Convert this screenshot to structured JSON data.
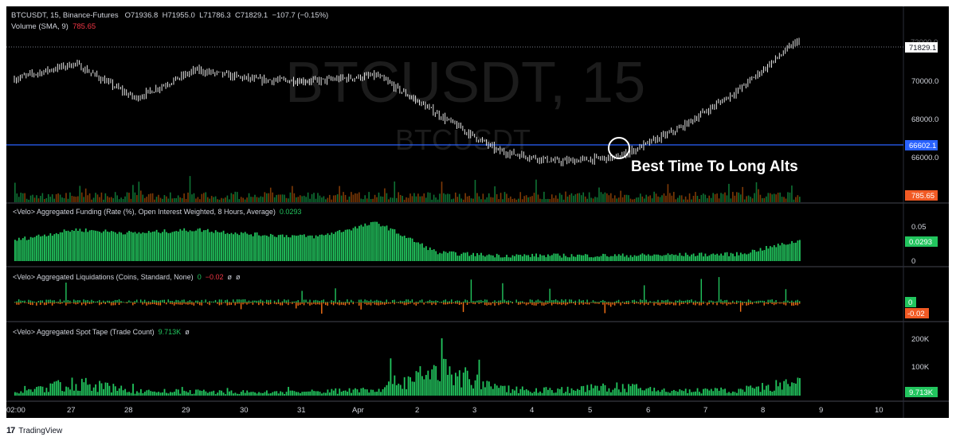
{
  "header": {
    "symbol_line": "BTCUSDT, 15, Binance-Futures",
    "open": "O71936.8",
    "high": "H71955.0",
    "low": "L71786.3",
    "close": "C71829.1",
    "change": "−107.7 (−0.15%)",
    "volume_label": "Volume (SMA, 9)",
    "volume_value": "785.65"
  },
  "watermark": {
    "main": "BTCUSDT, 15",
    "sub": "BTCUSDT"
  },
  "annotation": {
    "text": "Best Time To Long Alts"
  },
  "price_axis": {
    "ticks": [
      "70000.0",
      "68000.0",
      "66000.0"
    ],
    "current_price": "71829.1",
    "line_price": "66602.1",
    "volume_badge": "785.65",
    "top_cut_tick": "72000.0"
  },
  "panes": {
    "funding": {
      "title": "<Velo> Aggregated Funding (Rate (%), Open Interest Weighted, 8 Hours, Average)",
      "value": "0.0293",
      "ticks": [
        "0.05",
        "0"
      ],
      "badge": "0.0293"
    },
    "liquidations": {
      "title": "<Velo> Aggregated Liquidations (Coins, Standard, None)",
      "value_a": "0",
      "value_b": "−0.02",
      "value_c": "ø",
      "value_d": "ø",
      "badge_a": "0",
      "badge_b": "-0.02"
    },
    "spot_tape": {
      "title": "<Velo> Aggregated Spot Tape (Trade Count)",
      "value": "9.713K",
      "value_b": "ø",
      "ticks": [
        "200K",
        "100K"
      ],
      "badge": "9.713K"
    }
  },
  "time_axis": {
    "labels": [
      "02:00",
      "27",
      "28",
      "29",
      "30",
      "31",
      "Apr",
      "2",
      "3",
      "4",
      "5",
      "6",
      "7",
      "8",
      "9",
      "10"
    ]
  },
  "footer": {
    "logo": "17",
    "brand": "TradingView"
  },
  "colors": {
    "background": "#000000",
    "candle": "#ffffff",
    "horizontal_line": "#2962ff",
    "funding_bars": "#22c55e",
    "liq_long": "#22c55e",
    "liq_short": "#f97316",
    "volume_badge": "#f15a24",
    "green_badge": "#22c55e"
  },
  "chart_data": [
    {
      "type": "line",
      "title": "BTCUSDT, 15",
      "x": [
        "26 Mar 02:00",
        "27 Mar",
        "28 Mar",
        "29 Mar",
        "30 Mar",
        "31 Mar",
        "1 Apr",
        "2 Apr",
        "3 Apr",
        "4 Apr",
        "5 Apr",
        "6 Apr",
        "7 Apr",
        "8 Apr"
      ],
      "y": [
        70200,
        70900,
        69300,
        70600,
        70150,
        70100,
        70350,
        68600,
        66900,
        66400,
        66600,
        67900,
        69700,
        72000
      ],
      "last": 71829.1,
      "ylim": [
        65200,
        72500
      ],
      "horizontal_line": 66602.1
    },
    {
      "type": "bar",
      "title": "<Velo> Aggregated Funding (Rate (%), Open Interest Weighted, 8 Hours, Average)",
      "x": [
        "26 Mar",
        "27 Mar",
        "28 Mar",
        "29 Mar",
        "30 Mar",
        "31 Mar",
        "1 Apr",
        "2 Apr",
        "3 Apr",
        "4 Apr",
        "5 Apr",
        "6 Apr",
        "7 Apr",
        "8 Apr"
      ],
      "values": [
        0.03,
        0.045,
        0.04,
        0.045,
        0.038,
        0.035,
        0.055,
        0.012,
        0.008,
        0.008,
        0.008,
        0.009,
        0.01,
        0.0293
      ],
      "ylim": [
        0,
        0.075
      ]
    },
    {
      "type": "bar",
      "title": "<Velo> Aggregated Spot Tape (Trade Count)",
      "x": [
        "26 Mar",
        "27 Mar",
        "28 Mar",
        "29 Mar",
        "30 Mar",
        "31 Mar",
        "1 Apr",
        "2 Apr",
        "3 Apr",
        "4 Apr",
        "5 Apr",
        "6 Apr",
        "7 Apr",
        "8 Apr"
      ],
      "values": [
        25000,
        110000,
        40000,
        35000,
        30000,
        35000,
        60000,
        240000,
        60000,
        50000,
        75000,
        40000,
        50000,
        110000
      ],
      "last": 9713,
      "ylim": [
        0,
        240000
      ]
    }
  ]
}
